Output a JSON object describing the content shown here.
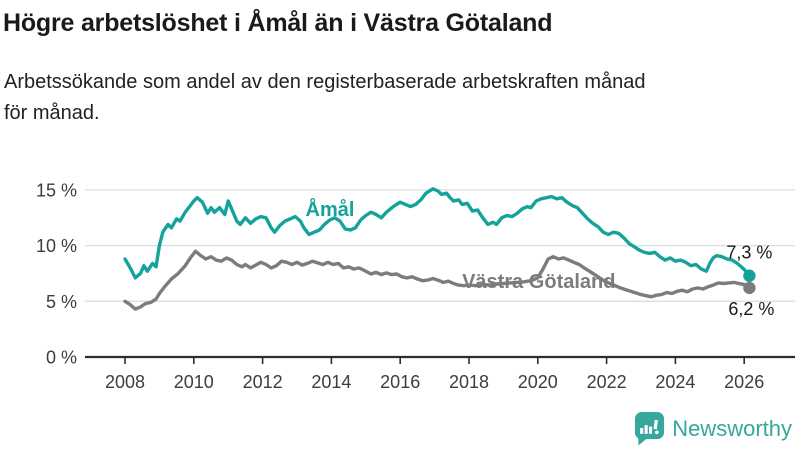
{
  "header": {
    "title": "Högre arbetslöshet i Åmål än i Västra Götaland",
    "subtitle_lines": [
      "Arbetssökande som andel av den registerbaserade arbetskraften månad",
      "för månad."
    ]
  },
  "footer": {
    "brand": "Newsworthy"
  },
  "colors": {
    "amal_teal": "#14a39a",
    "vastra_gray": "#7c7c7c",
    "brand_teal": "#35a79b",
    "grid": "#dcdcdc",
    "axis": "#2e2e2e",
    "text_dark": "#1a1a1a"
  },
  "chart_data": {
    "type": "line",
    "title": "Högre arbetslöshet i Åmål än i Västra Götaland",
    "subtitle": "Arbetssökande som andel av den registerbaserade arbetskraften månad för månad.",
    "xlabel": "",
    "ylabel": "%",
    "x_unit": "year (decimal, monthly samples)",
    "y_unit": "percent",
    "grid": "horizontal",
    "legend_position": "inline-labels",
    "x_ticks": [
      2008,
      2010,
      2012,
      2014,
      2016,
      2018,
      2020,
      2022,
      2024,
      2026
    ],
    "x_tick_labels": [
      "2008",
      "2010",
      "2012",
      "2014",
      "2016",
      "2018",
      "2020",
      "2022",
      "2024",
      "2026"
    ],
    "y_ticks": [
      0,
      5,
      10,
      15
    ],
    "y_tick_labels": [
      "0 %",
      "5 %",
      "10 %",
      "15 %"
    ],
    "ylim": [
      0,
      16
    ],
    "xlim": [
      2007.8,
      2026.6
    ],
    "series": [
      {
        "name": "Åmål",
        "color": "#14a39a",
        "end_label": "7,3 %",
        "end_value": 7.3,
        "points": [
          [
            2008.0,
            8.8
          ],
          [
            2008.15,
            8.0
          ],
          [
            2008.3,
            7.1
          ],
          [
            2008.45,
            7.5
          ],
          [
            2008.55,
            8.2
          ],
          [
            2008.65,
            7.7
          ],
          [
            2008.8,
            8.4
          ],
          [
            2008.9,
            8.1
          ],
          [
            2009.0,
            10.0
          ],
          [
            2009.1,
            11.2
          ],
          [
            2009.25,
            11.9
          ],
          [
            2009.35,
            11.6
          ],
          [
            2009.5,
            12.4
          ],
          [
            2009.6,
            12.2
          ],
          [
            2009.75,
            13.0
          ],
          [
            2009.9,
            13.6
          ],
          [
            2010.0,
            14.0
          ],
          [
            2010.1,
            14.3
          ],
          [
            2010.25,
            13.9
          ],
          [
            2010.4,
            12.9
          ],
          [
            2010.5,
            13.4
          ],
          [
            2010.6,
            13.0
          ],
          [
            2010.75,
            13.4
          ],
          [
            2010.9,
            12.8
          ],
          [
            2011.0,
            14.0
          ],
          [
            2011.1,
            13.3
          ],
          [
            2011.25,
            12.2
          ],
          [
            2011.35,
            11.9
          ],
          [
            2011.5,
            12.5
          ],
          [
            2011.65,
            12.0
          ],
          [
            2011.8,
            12.4
          ],
          [
            2011.95,
            12.6
          ],
          [
            2012.1,
            12.5
          ],
          [
            2012.25,
            11.6
          ],
          [
            2012.35,
            11.2
          ],
          [
            2012.5,
            11.8
          ],
          [
            2012.65,
            12.2
          ],
          [
            2012.8,
            12.4
          ],
          [
            2012.95,
            12.6
          ],
          [
            2013.1,
            12.2
          ],
          [
            2013.2,
            11.6
          ],
          [
            2013.35,
            11.0
          ],
          [
            2013.5,
            11.2
          ],
          [
            2013.65,
            11.4
          ],
          [
            2013.8,
            11.9
          ],
          [
            2013.95,
            12.3
          ],
          [
            2014.1,
            12.5
          ],
          [
            2014.25,
            12.2
          ],
          [
            2014.4,
            11.5
          ],
          [
            2014.55,
            11.4
          ],
          [
            2014.7,
            11.6
          ],
          [
            2014.85,
            12.3
          ],
          [
            2015.0,
            12.7
          ],
          [
            2015.15,
            13.0
          ],
          [
            2015.3,
            12.8
          ],
          [
            2015.45,
            12.5
          ],
          [
            2015.6,
            13.0
          ],
          [
            2015.8,
            13.5
          ],
          [
            2016.0,
            13.9
          ],
          [
            2016.15,
            13.7
          ],
          [
            2016.3,
            13.5
          ],
          [
            2016.45,
            13.7
          ],
          [
            2016.6,
            14.1
          ],
          [
            2016.75,
            14.7
          ],
          [
            2016.95,
            15.1
          ],
          [
            2017.1,
            14.9
          ],
          [
            2017.2,
            14.6
          ],
          [
            2017.35,
            14.7
          ],
          [
            2017.45,
            14.3
          ],
          [
            2017.55,
            14.0
          ],
          [
            2017.7,
            14.1
          ],
          [
            2017.8,
            13.7
          ],
          [
            2017.95,
            13.8
          ],
          [
            2018.1,
            13.1
          ],
          [
            2018.25,
            13.2
          ],
          [
            2018.4,
            12.5
          ],
          [
            2018.55,
            11.9
          ],
          [
            2018.7,
            12.1
          ],
          [
            2018.8,
            11.9
          ],
          [
            2018.95,
            12.5
          ],
          [
            2019.1,
            12.7
          ],
          [
            2019.25,
            12.6
          ],
          [
            2019.4,
            12.9
          ],
          [
            2019.55,
            13.3
          ],
          [
            2019.7,
            13.5
          ],
          [
            2019.8,
            13.4
          ],
          [
            2019.95,
            14.0
          ],
          [
            2020.1,
            14.2
          ],
          [
            2020.25,
            14.3
          ],
          [
            2020.4,
            14.4
          ],
          [
            2020.55,
            14.2
          ],
          [
            2020.7,
            14.3
          ],
          [
            2020.85,
            13.9
          ],
          [
            2021.0,
            13.6
          ],
          [
            2021.15,
            13.4
          ],
          [
            2021.3,
            12.9
          ],
          [
            2021.45,
            12.4
          ],
          [
            2021.6,
            12.0
          ],
          [
            2021.75,
            11.7
          ],
          [
            2021.9,
            11.2
          ],
          [
            2022.05,
            11.0
          ],
          [
            2022.2,
            11.2
          ],
          [
            2022.35,
            11.1
          ],
          [
            2022.5,
            10.7
          ],
          [
            2022.65,
            10.2
          ],
          [
            2022.8,
            9.9
          ],
          [
            2022.95,
            9.6
          ],
          [
            2023.1,
            9.4
          ],
          [
            2023.25,
            9.3
          ],
          [
            2023.4,
            9.4
          ],
          [
            2023.55,
            9.0
          ],
          [
            2023.7,
            8.7
          ],
          [
            2023.85,
            8.9
          ],
          [
            2024.0,
            8.6
          ],
          [
            2024.15,
            8.7
          ],
          [
            2024.3,
            8.5
          ],
          [
            2024.45,
            8.2
          ],
          [
            2024.6,
            8.3
          ],
          [
            2024.75,
            7.9
          ],
          [
            2024.9,
            7.7
          ],
          [
            2025.0,
            8.4
          ],
          [
            2025.1,
            8.9
          ],
          [
            2025.2,
            9.1
          ],
          [
            2025.35,
            9.0
          ],
          [
            2025.5,
            8.8
          ],
          [
            2025.65,
            8.7
          ],
          [
            2025.8,
            8.4
          ],
          [
            2025.95,
            8.0
          ],
          [
            2026.05,
            7.7
          ],
          [
            2026.15,
            7.3
          ]
        ]
      },
      {
        "name": "Västra Götaland",
        "color": "#7c7c7c",
        "end_label": "6,2 %",
        "end_value": 6.2,
        "points": [
          [
            2008.0,
            5.0
          ],
          [
            2008.15,
            4.7
          ],
          [
            2008.3,
            4.3
          ],
          [
            2008.45,
            4.5
          ],
          [
            2008.6,
            4.8
          ],
          [
            2008.75,
            4.9
          ],
          [
            2008.9,
            5.2
          ],
          [
            2009.0,
            5.7
          ],
          [
            2009.15,
            6.3
          ],
          [
            2009.35,
            7.0
          ],
          [
            2009.55,
            7.5
          ],
          [
            2009.75,
            8.2
          ],
          [
            2009.9,
            8.9
          ],
          [
            2010.05,
            9.5
          ],
          [
            2010.2,
            9.1
          ],
          [
            2010.35,
            8.8
          ],
          [
            2010.5,
            9.0
          ],
          [
            2010.65,
            8.7
          ],
          [
            2010.8,
            8.6
          ],
          [
            2010.95,
            8.9
          ],
          [
            2011.1,
            8.7
          ],
          [
            2011.25,
            8.3
          ],
          [
            2011.4,
            8.1
          ],
          [
            2011.5,
            8.3
          ],
          [
            2011.65,
            8.0
          ],
          [
            2011.8,
            8.25
          ],
          [
            2011.95,
            8.5
          ],
          [
            2012.1,
            8.3
          ],
          [
            2012.25,
            8.0
          ],
          [
            2012.4,
            8.2
          ],
          [
            2012.55,
            8.6
          ],
          [
            2012.7,
            8.5
          ],
          [
            2012.85,
            8.3
          ],
          [
            2013.0,
            8.5
          ],
          [
            2013.15,
            8.25
          ],
          [
            2013.3,
            8.4
          ],
          [
            2013.45,
            8.6
          ],
          [
            2013.6,
            8.45
          ],
          [
            2013.75,
            8.3
          ],
          [
            2013.9,
            8.5
          ],
          [
            2014.05,
            8.3
          ],
          [
            2014.2,
            8.4
          ],
          [
            2014.35,
            8.0
          ],
          [
            2014.5,
            8.1
          ],
          [
            2014.65,
            7.9
          ],
          [
            2014.8,
            8.0
          ],
          [
            2015.0,
            7.7
          ],
          [
            2015.15,
            7.45
          ],
          [
            2015.3,
            7.6
          ],
          [
            2015.45,
            7.4
          ],
          [
            2015.6,
            7.55
          ],
          [
            2015.75,
            7.4
          ],
          [
            2015.9,
            7.45
          ],
          [
            2016.05,
            7.2
          ],
          [
            2016.2,
            7.1
          ],
          [
            2016.35,
            7.2
          ],
          [
            2016.5,
            7.0
          ],
          [
            2016.65,
            6.85
          ],
          [
            2016.8,
            6.9
          ],
          [
            2016.95,
            7.05
          ],
          [
            2017.1,
            6.9
          ],
          [
            2017.25,
            6.7
          ],
          [
            2017.4,
            6.8
          ],
          [
            2017.55,
            6.6
          ],
          [
            2017.7,
            6.45
          ],
          [
            2017.85,
            6.4
          ],
          [
            2018.0,
            6.45
          ],
          [
            2018.2,
            6.4
          ],
          [
            2018.4,
            6.5
          ],
          [
            2018.6,
            6.45
          ],
          [
            2018.8,
            6.55
          ],
          [
            2019.0,
            6.6
          ],
          [
            2019.2,
            6.65
          ],
          [
            2019.4,
            6.7
          ],
          [
            2019.6,
            6.75
          ],
          [
            2019.8,
            6.85
          ],
          [
            2020.0,
            7.1
          ],
          [
            2020.15,
            7.9
          ],
          [
            2020.3,
            8.8
          ],
          [
            2020.45,
            9.0
          ],
          [
            2020.6,
            8.8
          ],
          [
            2020.75,
            8.9
          ],
          [
            2020.9,
            8.7
          ],
          [
            2021.05,
            8.5
          ],
          [
            2021.2,
            8.3
          ],
          [
            2021.35,
            8.0
          ],
          [
            2021.5,
            7.7
          ],
          [
            2021.65,
            7.4
          ],
          [
            2021.8,
            7.1
          ],
          [
            2021.95,
            6.8
          ],
          [
            2022.1,
            6.6
          ],
          [
            2022.25,
            6.4
          ],
          [
            2022.4,
            6.2
          ],
          [
            2022.55,
            6.05
          ],
          [
            2022.7,
            5.9
          ],
          [
            2022.85,
            5.75
          ],
          [
            2023.0,
            5.6
          ],
          [
            2023.15,
            5.5
          ],
          [
            2023.3,
            5.4
          ],
          [
            2023.45,
            5.55
          ],
          [
            2023.6,
            5.6
          ],
          [
            2023.75,
            5.8
          ],
          [
            2023.9,
            5.7
          ],
          [
            2024.05,
            5.9
          ],
          [
            2024.2,
            6.0
          ],
          [
            2024.35,
            5.85
          ],
          [
            2024.5,
            6.1
          ],
          [
            2024.65,
            6.2
          ],
          [
            2024.8,
            6.1
          ],
          [
            2024.95,
            6.3
          ],
          [
            2025.1,
            6.45
          ],
          [
            2025.25,
            6.65
          ],
          [
            2025.4,
            6.6
          ],
          [
            2025.55,
            6.65
          ],
          [
            2025.7,
            6.7
          ],
          [
            2025.85,
            6.6
          ],
          [
            2026.0,
            6.5
          ],
          [
            2026.15,
            6.2
          ]
        ]
      }
    ]
  }
}
